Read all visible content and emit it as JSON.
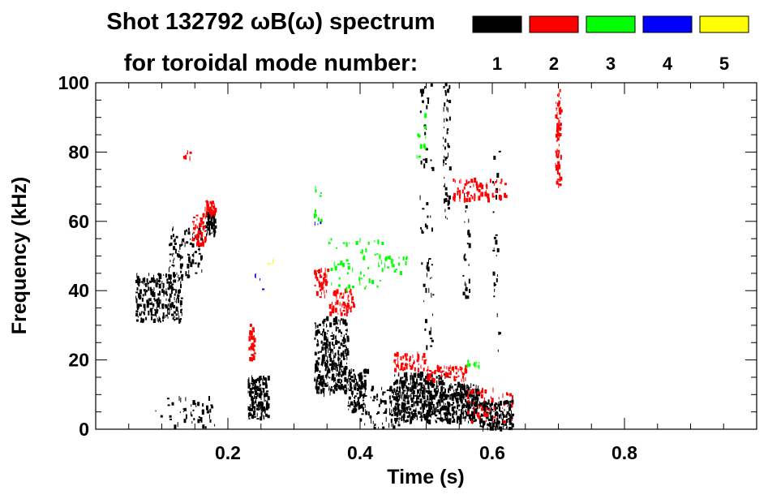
{
  "chart_data": {
    "type": "scatter",
    "title_line1": "Shot 132792 ωB(ω) spectrum",
    "title_line2": "for toroidal mode number:",
    "xlabel": "Time (s)",
    "ylabel": "Frequency (kHz)",
    "xlim": [
      0.0,
      1.0
    ],
    "ylim": [
      0,
      100
    ],
    "x_ticks": [
      0.2,
      0.4,
      0.6,
      0.8
    ],
    "x_tick_labels": [
      "0.2",
      "0.4",
      "0.6",
      "0.8"
    ],
    "y_ticks": [
      0,
      20,
      40,
      60,
      80,
      100
    ],
    "y_tick_labels": [
      "0",
      "20",
      "40",
      "60",
      "80",
      "100"
    ],
    "legend": [
      {
        "label": "1",
        "color": "#000000"
      },
      {
        "label": "2",
        "color": "#ff0000"
      },
      {
        "label": "3",
        "color": "#00ff00"
      },
      {
        "label": "4",
        "color": "#0000ff"
      },
      {
        "label": "5",
        "color": "#ffff00"
      }
    ],
    "series": [
      {
        "name": "n=1",
        "color": "#000000",
        "regions": [
          {
            "t": [
              0.06,
              0.13
            ],
            "f": [
              31,
              45
            ],
            "density": 260
          },
          {
            "t": [
              0.11,
              0.16
            ],
            "f": [
              44,
              58
            ],
            "density": 90
          },
          {
            "t": [
              0.165,
              0.18
            ],
            "f": [
              56,
              63
            ],
            "density": 70
          },
          {
            "t": [
              0.09,
              0.18
            ],
            "f": [
              0,
              9
            ],
            "density": 50
          },
          {
            "t": [
              0.23,
              0.26
            ],
            "f": [
              3,
              15
            ],
            "density": 140
          },
          {
            "t": [
              0.33,
              0.38
            ],
            "f": [
              10,
              32
            ],
            "density": 320
          },
          {
            "t": [
              0.38,
              0.41
            ],
            "f": [
              5,
              17
            ],
            "density": 120
          },
          {
            "t": [
              0.4,
              0.46
            ],
            "f": [
              0,
              12
            ],
            "density": 70
          },
          {
            "t": [
              0.45,
              0.53
            ],
            "f": [
              2,
              16
            ],
            "density": 460
          },
          {
            "t": [
              0.53,
              0.58
            ],
            "f": [
              2,
              13
            ],
            "density": 260
          },
          {
            "t": [
              0.58,
              0.63
            ],
            "f": [
              0,
              8
            ],
            "density": 170
          },
          {
            "t": [
              0.49,
              0.51
            ],
            "f": [
              22,
              100
            ],
            "density": 60
          },
          {
            "t": [
              0.525,
              0.535
            ],
            "f": [
              60,
              100
            ],
            "density": 50
          },
          {
            "t": [
              0.555,
              0.565
            ],
            "f": [
              35,
              68
            ],
            "density": 30
          },
          {
            "t": [
              0.6,
              0.61
            ],
            "f": [
              22,
              82
            ],
            "density": 25
          }
        ]
      },
      {
        "name": "n=2",
        "color": "#ff0000",
        "regions": [
          {
            "t": [
              0.13,
              0.15
            ],
            "f": [
              78,
              80
            ],
            "density": 8
          },
          {
            "t": [
              0.145,
              0.165
            ],
            "f": [
              53,
              62
            ],
            "density": 60
          },
          {
            "t": [
              0.165,
              0.18
            ],
            "f": [
              61,
              66
            ],
            "density": 40
          },
          {
            "t": [
              0.23,
              0.24
            ],
            "f": [
              20,
              30
            ],
            "density": 40
          },
          {
            "t": [
              0.33,
              0.35
            ],
            "f": [
              38,
              46
            ],
            "density": 50
          },
          {
            "t": [
              0.35,
              0.39
            ],
            "f": [
              33,
              40
            ],
            "density": 60
          },
          {
            "t": [
              0.45,
              0.5
            ],
            "f": [
              17,
              22
            ],
            "density": 50
          },
          {
            "t": [
              0.5,
              0.56
            ],
            "f": [
              14,
              18
            ],
            "density": 70
          },
          {
            "t": [
              0.56,
              0.63
            ],
            "f": [
              2,
              12
            ],
            "density": 60
          },
          {
            "t": [
              0.54,
              0.62
            ],
            "f": [
              66,
              72
            ],
            "density": 80
          },
          {
            "t": [
              0.695,
              0.703
            ],
            "f": [
              70,
              98
            ],
            "density": 70
          }
        ]
      },
      {
        "name": "n=3",
        "color": "#00ff00",
        "regions": [
          {
            "t": [
              0.33,
              0.34
            ],
            "f": [
              60,
              70
            ],
            "density": 10
          },
          {
            "t": [
              0.35,
              0.44
            ],
            "f": [
              40,
              55
            ],
            "density": 60
          },
          {
            "t": [
              0.44,
              0.47
            ],
            "f": [
              45,
              50
            ],
            "density": 20
          },
          {
            "t": [
              0.48,
              0.5
            ],
            "f": [
              78,
              92
            ],
            "density": 10
          },
          {
            "t": [
              0.56,
              0.58
            ],
            "f": [
              18,
              20
            ],
            "density": 12
          }
        ]
      },
      {
        "name": "n=4",
        "color": "#0000ff",
        "regions": [
          {
            "t": [
              0.24,
              0.26
            ],
            "f": [
              40,
              45
            ],
            "density": 4
          },
          {
            "t": [
              0.33,
              0.34
            ],
            "f": [
              56,
              60
            ],
            "density": 3
          }
        ]
      },
      {
        "name": "n=5",
        "color": "#ffff00",
        "regions": [
          {
            "t": [
              0.26,
              0.27
            ],
            "f": [
              47,
              49
            ],
            "density": 2
          }
        ]
      }
    ]
  }
}
